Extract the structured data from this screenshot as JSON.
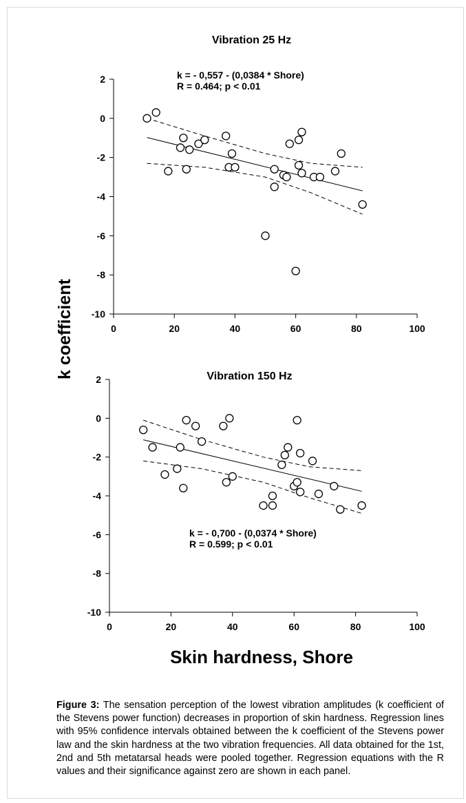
{
  "figure": {
    "shared_ylabel": "k coefficient",
    "shared_xlabel": "Skin hardness, Shore"
  },
  "chart_data": [
    {
      "type": "scatter",
      "title": "Vibration 25 Hz",
      "xlim": [
        0,
        100
      ],
      "ylim": [
        -10,
        2
      ],
      "xticks": [
        0,
        20,
        40,
        60,
        80,
        100
      ],
      "yticks": [
        2,
        0,
        -2,
        -4,
        -6,
        -8,
        -10
      ],
      "annotation": [
        "k = - 0,557 - (0,0384 * Shore)",
        "R = 0.464; p < 0.01"
      ],
      "points": [
        [
          11,
          0.0
        ],
        [
          14,
          0.3
        ],
        [
          18,
          -2.7
        ],
        [
          22,
          -1.5
        ],
        [
          23,
          -1.0
        ],
        [
          24,
          -2.6
        ],
        [
          25,
          -1.6
        ],
        [
          28,
          -1.3
        ],
        [
          30,
          -1.1
        ],
        [
          37,
          -0.9
        ],
        [
          38,
          -2.5
        ],
        [
          39,
          -1.8
        ],
        [
          40,
          -2.5
        ],
        [
          50,
          -6.0
        ],
        [
          53,
          -2.6
        ],
        [
          53,
          -3.5
        ],
        [
          56,
          -2.9
        ],
        [
          57,
          -3.0
        ],
        [
          58,
          -1.3
        ],
        [
          60,
          -7.8
        ],
        [
          61,
          -2.4
        ],
        [
          61,
          -1.1
        ],
        [
          62,
          -0.7
        ],
        [
          62,
          -2.8
        ],
        [
          66,
          -3.0
        ],
        [
          68,
          -3.0
        ],
        [
          73,
          -2.7
        ],
        [
          75,
          -1.8
        ],
        [
          82,
          -4.4
        ]
      ],
      "regression": {
        "intercept": -0.557,
        "slope": -0.0384,
        "x_range": [
          11,
          82
        ]
      },
      "ci_upper": [
        [
          11,
          0.0
        ],
        [
          30,
          -0.9
        ],
        [
          50,
          -1.8
        ],
        [
          65,
          -2.3
        ],
        [
          82,
          -2.5
        ]
      ],
      "ci_lower": [
        [
          11,
          -2.3
        ],
        [
          30,
          -2.5
        ],
        [
          50,
          -3.0
        ],
        [
          65,
          -3.8
        ],
        [
          82,
          -4.9
        ]
      ]
    },
    {
      "type": "scatter",
      "title": "Vibration 150 Hz",
      "xlim": [
        0,
        100
      ],
      "ylim": [
        -10,
        2
      ],
      "xticks": [
        0,
        20,
        40,
        60,
        80,
        100
      ],
      "yticks": [
        2,
        0,
        -2,
        -4,
        -6,
        -8,
        -10
      ],
      "annotation": [
        "k = - 0,700 - (0,0374 * Shore)",
        "R = 0.599; p < 0.01"
      ],
      "points": [
        [
          11,
          -0.6
        ],
        [
          14,
          -1.5
        ],
        [
          18,
          -2.9
        ],
        [
          22,
          -2.6
        ],
        [
          23,
          -1.5
        ],
        [
          24,
          -3.6
        ],
        [
          25,
          -0.1
        ],
        [
          28,
          -0.4
        ],
        [
          30,
          -1.2
        ],
        [
          37,
          -0.4
        ],
        [
          38,
          -3.3
        ],
        [
          39,
          0.0
        ],
        [
          40,
          -3.0
        ],
        [
          50,
          -4.5
        ],
        [
          53,
          -4.5
        ],
        [
          53,
          -4.0
        ],
        [
          56,
          -2.4
        ],
        [
          57,
          -1.9
        ],
        [
          58,
          -1.5
        ],
        [
          60,
          -3.5
        ],
        [
          61,
          -0.1
        ],
        [
          61,
          -3.3
        ],
        [
          62,
          -3.8
        ],
        [
          62,
          -1.8
        ],
        [
          66,
          -2.2
        ],
        [
          68,
          -3.9
        ],
        [
          73,
          -3.5
        ],
        [
          75,
          -4.7
        ],
        [
          82,
          -4.5
        ]
      ],
      "regression": {
        "intercept": -0.7,
        "slope": -0.0374,
        "x_range": [
          11,
          82
        ]
      },
      "ci_upper": [
        [
          11,
          -0.1
        ],
        [
          30,
          -1.1
        ],
        [
          50,
          -2.0
        ],
        [
          65,
          -2.5
        ],
        [
          82,
          -2.7
        ]
      ],
      "ci_lower": [
        [
          11,
          -2.2
        ],
        [
          30,
          -2.6
        ],
        [
          50,
          -3.3
        ],
        [
          65,
          -4.1
        ],
        [
          82,
          -4.9
        ]
      ]
    }
  ],
  "caption": {
    "label": "Figure 3:",
    "text": " The sensation perception of the lowest vibration amplitudes (k coefficient of the Stevens power function) decreases in proportion of skin hardness. Regression lines with 95% confidence intervals obtained between the k coefficient of the Stevens power law and the skin hardness at the two vibration frequencies. All data obtained for the 1st, 2nd and 5th metatarsal heads were pooled together. Regression equations with the R values and their significance against zero are shown in each panel."
  }
}
